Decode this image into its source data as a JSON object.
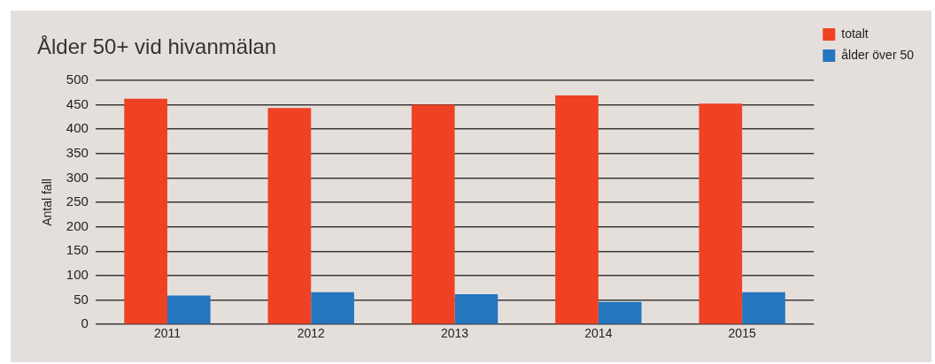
{
  "chart_data": {
    "type": "bar",
    "title": "Ålder 50+ vid hivanmälan",
    "ylabel": "Antal fall",
    "categories": [
      "2011",
      "2012",
      "2013",
      "2014",
      "2015"
    ],
    "series": [
      {
        "name": "totalt",
        "color": "#ef4123",
        "values": [
          462,
          443,
          450,
          469,
          452
        ]
      },
      {
        "name": "ålder över 50",
        "color": "#2476bf",
        "values": [
          59,
          66,
          62,
          46,
          66
        ]
      }
    ],
    "ylim": [
      0,
      500
    ],
    "yticks": [
      0,
      50,
      100,
      150,
      200,
      250,
      300,
      350,
      400,
      450,
      500
    ],
    "grid": "y",
    "legend": "top right"
  }
}
